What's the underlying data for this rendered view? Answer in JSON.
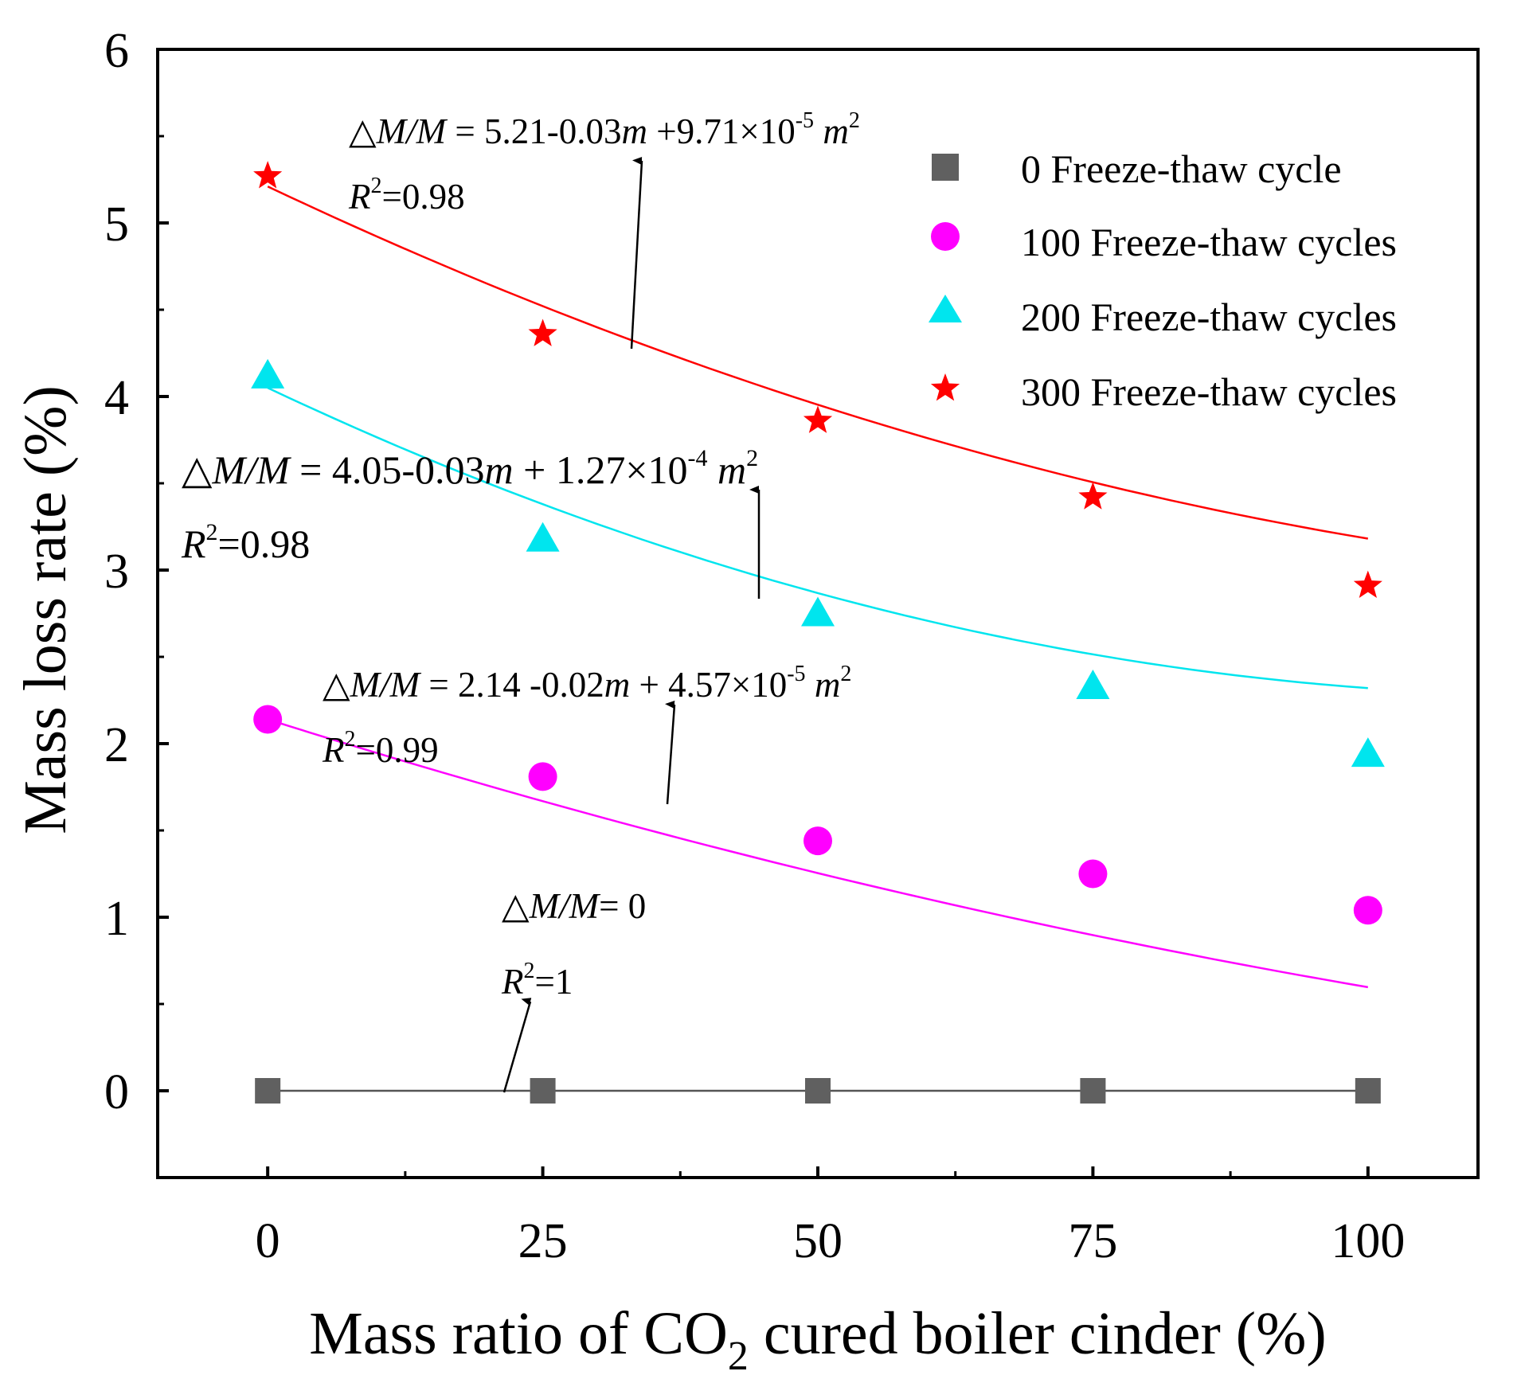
{
  "chart_data": {
    "type": "scatter",
    "xlabel": "Mass ratio of CO2 cured boiler cinder (%)",
    "xlabel_prefix": "Mass ratio of CO",
    "xlabel_sub": "2",
    "xlabel_suffix": " cured boiler cinder (%)",
    "ylabel": "Mass loss rate (%)",
    "xlim": [
      -10,
      110
    ],
    "ylim": [
      -0.5,
      6
    ],
    "x_ticks": [
      0,
      25,
      50,
      75,
      100
    ],
    "x_tick_labels": [
      "0",
      "25",
      "50",
      "75",
      "100"
    ],
    "y_ticks": [
      0,
      1,
      2,
      3,
      4,
      5,
      6
    ],
    "y_tick_labels": [
      "0",
      "1",
      "2",
      "3",
      "4",
      "5",
      "6"
    ],
    "legend_position": "top-right",
    "series": [
      {
        "name": "0 Freeze-thaw cycle",
        "marker": "square",
        "color": "#606060",
        "x": [
          0,
          25,
          50,
          75,
          100
        ],
        "values": [
          0,
          0,
          0,
          0,
          0
        ],
        "fit": [
          0,
          0,
          0
        ],
        "equation": "ΔM/M= 0",
        "r2": "R2=1"
      },
      {
        "name": "100 Freeze-thaw cycles",
        "marker": "circle",
        "color": "#ff00ff",
        "x": [
          0,
          25,
          50,
          75,
          100
        ],
        "values": [
          2.14,
          1.81,
          1.44,
          1.25,
          1.04
        ],
        "fit": [
          2.14,
          -0.02,
          4.57e-05
        ],
        "equation": "ΔM/M = 2.14 -0.02m + 4.57×10-5 m2",
        "r2": "R2=0.99"
      },
      {
        "name": "200 Freeze-thaw cycles",
        "marker": "triangle",
        "color": "#00e5ee",
        "x": [
          0,
          25,
          50,
          75,
          100
        ],
        "values": [
          4.12,
          3.18,
          2.75,
          2.33,
          1.94
        ],
        "fit": [
          4.05,
          -0.03,
          0.000127
        ],
        "equation": "ΔM/M = 4.05-0.03m + 1.27×10-4 m2",
        "r2": "R2=0.98"
      },
      {
        "name": "300 Freeze-thaw cycles",
        "marker": "star",
        "color": "#ff0000",
        "x": [
          0,
          25,
          50,
          75,
          100
        ],
        "values": [
          5.27,
          4.36,
          3.86,
          3.42,
          2.91
        ],
        "fit": [
          5.21,
          -0.03,
          9.71e-05
        ],
        "equation": "ΔM/M = 5.21-0.03m +9.71×10-5 m2",
        "r2": "R2=0.98"
      }
    ]
  },
  "annotations": {
    "s300": {
      "delta": "△",
      "lhs": "M/M",
      "eq_pre": " = 5.21-0.03",
      "m1": "m",
      "eq_mid": " +9.71×10",
      "exp": "-5",
      "m2": "m",
      "sq": "2",
      "r": "R",
      "r_sup": "2",
      "r_val": "=0.98"
    },
    "s200": {
      "delta": "△",
      "lhs": "M/M",
      "eq_pre": " = 4.05-0.03",
      "m1": "m",
      "eq_mid": " + 1.27×10",
      "exp": "-4",
      "m2": "m",
      "sq": "2",
      "r": "R",
      "r_sup": "2",
      "r_val": "=0.98"
    },
    "s100": {
      "delta": "△",
      "lhs": "M/M",
      "eq_pre": " = 2.14 -0.02",
      "m1": "m",
      "eq_mid": " + 4.57×10",
      "exp": "-5",
      "m2": "m",
      "sq": "2",
      "r": "R",
      "r_sup": "2",
      "r_val": "=0.99"
    },
    "s0": {
      "delta": "△",
      "lhs": "M/M",
      "eq_pre": "= 0",
      "r": "R",
      "r_sup": "2",
      "r_val": "=1"
    }
  }
}
